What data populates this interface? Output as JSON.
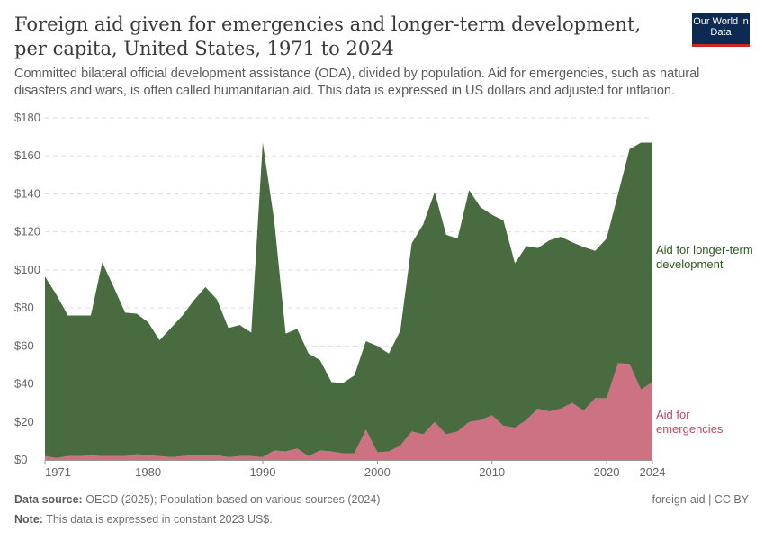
{
  "header": {
    "title": "Foreign aid given for emergencies and longer-term development, per capita, United States, 1971 to 2024",
    "subtitle": "Committed bilateral official development assistance (ODA), divided by population. Aid for emergencies, such as natural disasters and wars, is often called humanitarian aid. This data is expressed in US dollars and adjusted for inflation.",
    "logo": "Our World in Data"
  },
  "footer": {
    "source_label": "Data source:",
    "source": "OECD (2025); Population based on various sources (2024)",
    "note_label": "Note:",
    "note": "This data is expressed in constant 2023 US$.",
    "license": "foreign-aid | CC BY"
  },
  "chart_data": {
    "type": "area",
    "stacked": true,
    "xlim": [
      1971,
      2024
    ],
    "ylim": [
      0,
      180
    ],
    "grid": true,
    "legend_placement": "right (inline labels)",
    "x_ticks": [
      "1971",
      "1980",
      "1990",
      "2000",
      "2010",
      "2020",
      "2024"
    ],
    "y_ticks": [
      "$0",
      "$20",
      "$40",
      "$60",
      "$80",
      "$100",
      "$120",
      "$140",
      "$160",
      "$180"
    ],
    "x": [
      1971,
      1972,
      1973,
      1974,
      1975,
      1976,
      1977,
      1978,
      1979,
      1980,
      1981,
      1982,
      1983,
      1984,
      1985,
      1986,
      1987,
      1988,
      1989,
      1990,
      1991,
      1992,
      1993,
      1994,
      1995,
      1996,
      1997,
      1998,
      1999,
      2000,
      2001,
      2002,
      2003,
      2004,
      2005,
      2006,
      2007,
      2008,
      2009,
      2010,
      2011,
      2012,
      2013,
      2014,
      2015,
      2016,
      2017,
      2018,
      2019,
      2020,
      2021,
      2022,
      2023,
      2024
    ],
    "series": [
      {
        "name": "Aid for emergencies",
        "color": "#cc7282",
        "values": [
          2,
          1,
          2,
          2,
          2.5,
          2,
          2,
          2,
          3,
          2.5,
          2,
          1.5,
          2,
          2.5,
          2.5,
          2.5,
          1.5,
          2,
          2,
          1.5,
          5,
          4.5,
          6,
          2,
          5,
          4.5,
          3.5,
          3.5,
          16,
          4,
          4.5,
          7.5,
          15,
          13.5,
          20,
          13.5,
          15,
          20,
          21,
          23.5,
          18,
          17,
          21,
          27,
          25.5,
          27,
          30,
          26,
          32.5,
          32.5,
          51,
          50.5,
          37,
          41
        ]
      },
      {
        "name": "Aid for longer-term development",
        "color": "#486c40",
        "label_color": "#2e5a22",
        "values": [
          94.5,
          86,
          74,
          74,
          73.5,
          102,
          89,
          75.5,
          74,
          70,
          61,
          68,
          74,
          81.5,
          88.5,
          82,
          68,
          69,
          65,
          165.5,
          121,
          62,
          63,
          54,
          47.5,
          36.5,
          37,
          41,
          46.5,
          56,
          51.5,
          60.5,
          99,
          110.5,
          121,
          105,
          101.5,
          122,
          112,
          105.5,
          108,
          86.5,
          91.5,
          84.5,
          90,
          90.5,
          84.5,
          86,
          77.5,
          84,
          89,
          113,
          130,
          126
        ]
      }
    ]
  }
}
